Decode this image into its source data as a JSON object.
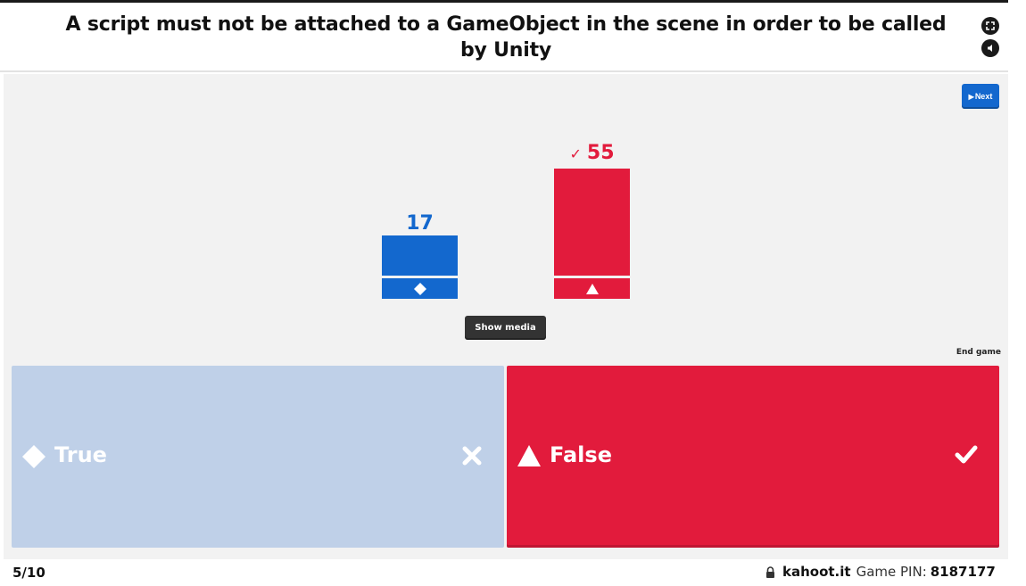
{
  "question": {
    "title": "A script must not be attached to a GameObject in the scene in order to be called by Unity"
  },
  "header_icons": [
    "fullscreen-icon",
    "volume-icon"
  ],
  "controls": {
    "next_label": "Next",
    "show_media_label": "Show media",
    "end_game_label": "End game"
  },
  "results": [
    {
      "answer": "True",
      "count": "17",
      "shape": "diamond",
      "color": "#1368ce",
      "correct": false
    },
    {
      "answer": "False",
      "count": "55",
      "shape": "triangle",
      "color": "#e21b3c",
      "correct": true
    }
  ],
  "answers": [
    {
      "label": "True",
      "shape": "diamond-icon",
      "mark": "cross-icon",
      "color": "#bfd0e8",
      "correct": false
    },
    {
      "label": "False",
      "shape": "triangle-icon",
      "mark": "check-icon",
      "color": "#e21b3c",
      "correct": true
    }
  ],
  "footer": {
    "progress": "5/10",
    "domain": "kahoot.it",
    "pin_label": "Game PIN:",
    "pin": "8187177"
  },
  "colors": {
    "blue": "#1368ce",
    "red": "#e21b3c",
    "faded_blue": "#bfd0e8",
    "stage_bg": "#f2f2f2"
  }
}
